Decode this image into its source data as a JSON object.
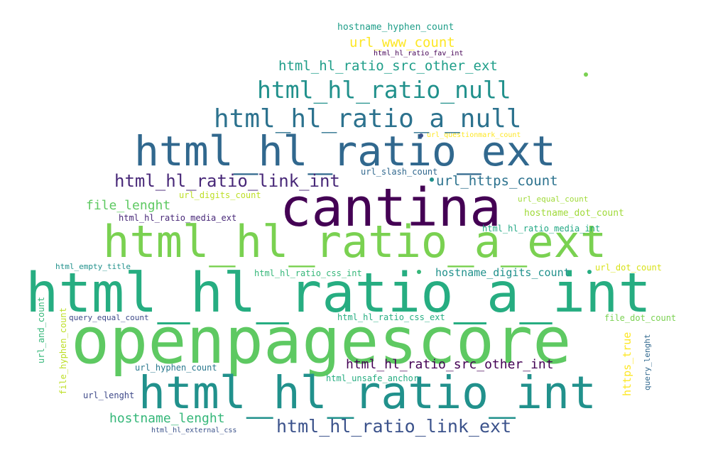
{
  "words": [
    {
      "text": "cantina",
      "color": "#440154"
    },
    {
      "text": "openpagescore",
      "color": "#5ec962"
    },
    {
      "text": "html_hl_ratio_a_int",
      "color": "#26ad81"
    },
    {
      "text": "html_hl_ratio_a_ext",
      "color": "#7ad151"
    },
    {
      "text": "html_hl_ratio_ext",
      "color": "#31688e"
    },
    {
      "text": "html_hl_ratio_int",
      "color": "#21918c"
    },
    {
      "text": "html_hl_ratio_a_null",
      "color": "#2c728e"
    },
    {
      "text": "html_hl_ratio_null",
      "color": "#21918c"
    },
    {
      "text": "html_hl_ratio_link_ext",
      "color": "#3b528b"
    },
    {
      "text": "html_hl_ratio_link_int",
      "color": "#482878"
    },
    {
      "text": "html_hl_ratio_src_other_ext",
      "color": "#1f9e89"
    },
    {
      "text": "url_www_count",
      "color": "#fde725"
    },
    {
      "text": "hostname_hyphen_count",
      "color": "#1f9e89"
    },
    {
      "text": "html_hl_ratio_fav_int",
      "color": "#440154"
    },
    {
      "text": "url_questionmark_count",
      "color": "#fde725"
    },
    {
      "text": "url_slash_count",
      "color": "#31688e"
    },
    {
      "text": "url_https_count",
      "color": "#2c728e"
    },
    {
      "text": "url_digits_count",
      "color": "#bddf26"
    },
    {
      "text": "file_lenght",
      "color": "#5ec962"
    },
    {
      "text": "html_hl_ratio_media_ext",
      "color": "#482878"
    },
    {
      "text": "url_equal_count",
      "color": "#a0da39"
    },
    {
      "text": "hostname_dot_count",
      "color": "#a0da39"
    },
    {
      "text": "html_hl_ratio_media_int",
      "color": "#22a884"
    },
    {
      "text": "html_empty_title",
      "color": "#21918c"
    },
    {
      "text": "html_hl_ratio_css_int",
      "color": "#35b779"
    },
    {
      "text": "hostname_digits_count",
      "color": "#21918c"
    },
    {
      "text": "url_dot_count",
      "color": "#d8e219"
    },
    {
      "text": "url_and_count",
      "color": "#35b779"
    },
    {
      "text": "file_hyphen_count",
      "color": "#bddf26"
    },
    {
      "text": "query_equal_count",
      "color": "#3e4989"
    },
    {
      "text": "html_hl_ratio_css_ext",
      "color": "#26ad81"
    },
    {
      "text": "file_dot_count",
      "color": "#7ad151"
    },
    {
      "text": "https_true",
      "color": "#fde725"
    },
    {
      "text": "query_lenght",
      "color": "#31688e"
    },
    {
      "text": "html_hl_ratio_src_other_int",
      "color": "#440154"
    },
    {
      "text": "url_hyphen_count",
      "color": "#2a788e"
    },
    {
      "text": "html_unsafe_anchor",
      "color": "#26ad81"
    },
    {
      "text": "url_lenght",
      "color": "#3e4989"
    },
    {
      "text": "hostname_lenght",
      "color": "#35b779"
    },
    {
      "text": "html_hl_external_css",
      "color": "#3b528b"
    }
  ],
  "dots": [
    {
      "color": "#3b528b"
    },
    {
      "color": "#35b779"
    },
    {
      "color": "#26ad81"
    },
    {
      "color": "#21918c"
    },
    {
      "color": "#7ad151"
    }
  ]
}
